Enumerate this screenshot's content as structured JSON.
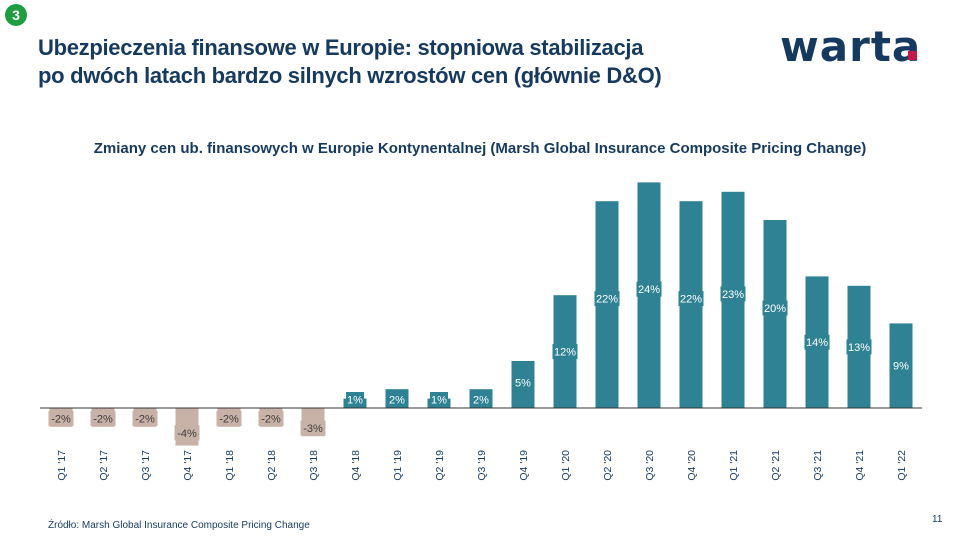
{
  "header": {
    "badge": "3",
    "title_line1": "Ubezpieczenia finansowe w Europie: stopniowa stabilizacja",
    "title_line2": "po dwóch latach bardzo silnych wzrostów cen (głównie D&O)",
    "logo": "warta"
  },
  "colors": {
    "positive": "#2e8294",
    "negative": "#c8b1a6",
    "brand_dark": "#163a5f",
    "brand_accent": "#c2184a",
    "badge": "#1e9e3e"
  },
  "chart_data": {
    "type": "bar",
    "title": "Zmiany cen ub. finansowych w Europie Kontynentalnej  (Marsh Global Insurance Composite Pricing Change)",
    "categories": [
      "Q1 '17",
      "Q2 '17",
      "Q3 '17",
      "Q4 '17",
      "Q1 '18",
      "Q2 '18",
      "Q3 '18",
      "Q4 '18",
      "Q1 '19",
      "Q2 '19",
      "Q3 '19",
      "Q4 '19",
      "Q1 '20",
      "Q2 '20",
      "Q3 '20",
      "Q4 '20",
      "Q1 '21",
      "Q2 '21",
      "Q3 '21",
      "Q4 '21",
      "Q1 '22"
    ],
    "values": [
      -2,
      -2,
      -2,
      -4,
      -2,
      -2,
      -3,
      1,
      2,
      1,
      2,
      5,
      12,
      22,
      24,
      22,
      23,
      20,
      14,
      13,
      9
    ],
    "labels": [
      "-2%",
      "-2%",
      "-2%",
      "-4%",
      "-2%",
      "-2%",
      "-3%",
      "1%",
      "2%",
      "1%",
      "2%",
      "5%",
      "12%",
      "22%",
      "24%",
      "22%",
      "23%",
      "20%",
      "14%",
      "13%",
      "9%"
    ],
    "unit": "%",
    "grid": false,
    "legend": "none"
  },
  "footer": {
    "source": "Źródło: Marsh Global Insurance Composite Pricing Change",
    "page_number": "11"
  }
}
